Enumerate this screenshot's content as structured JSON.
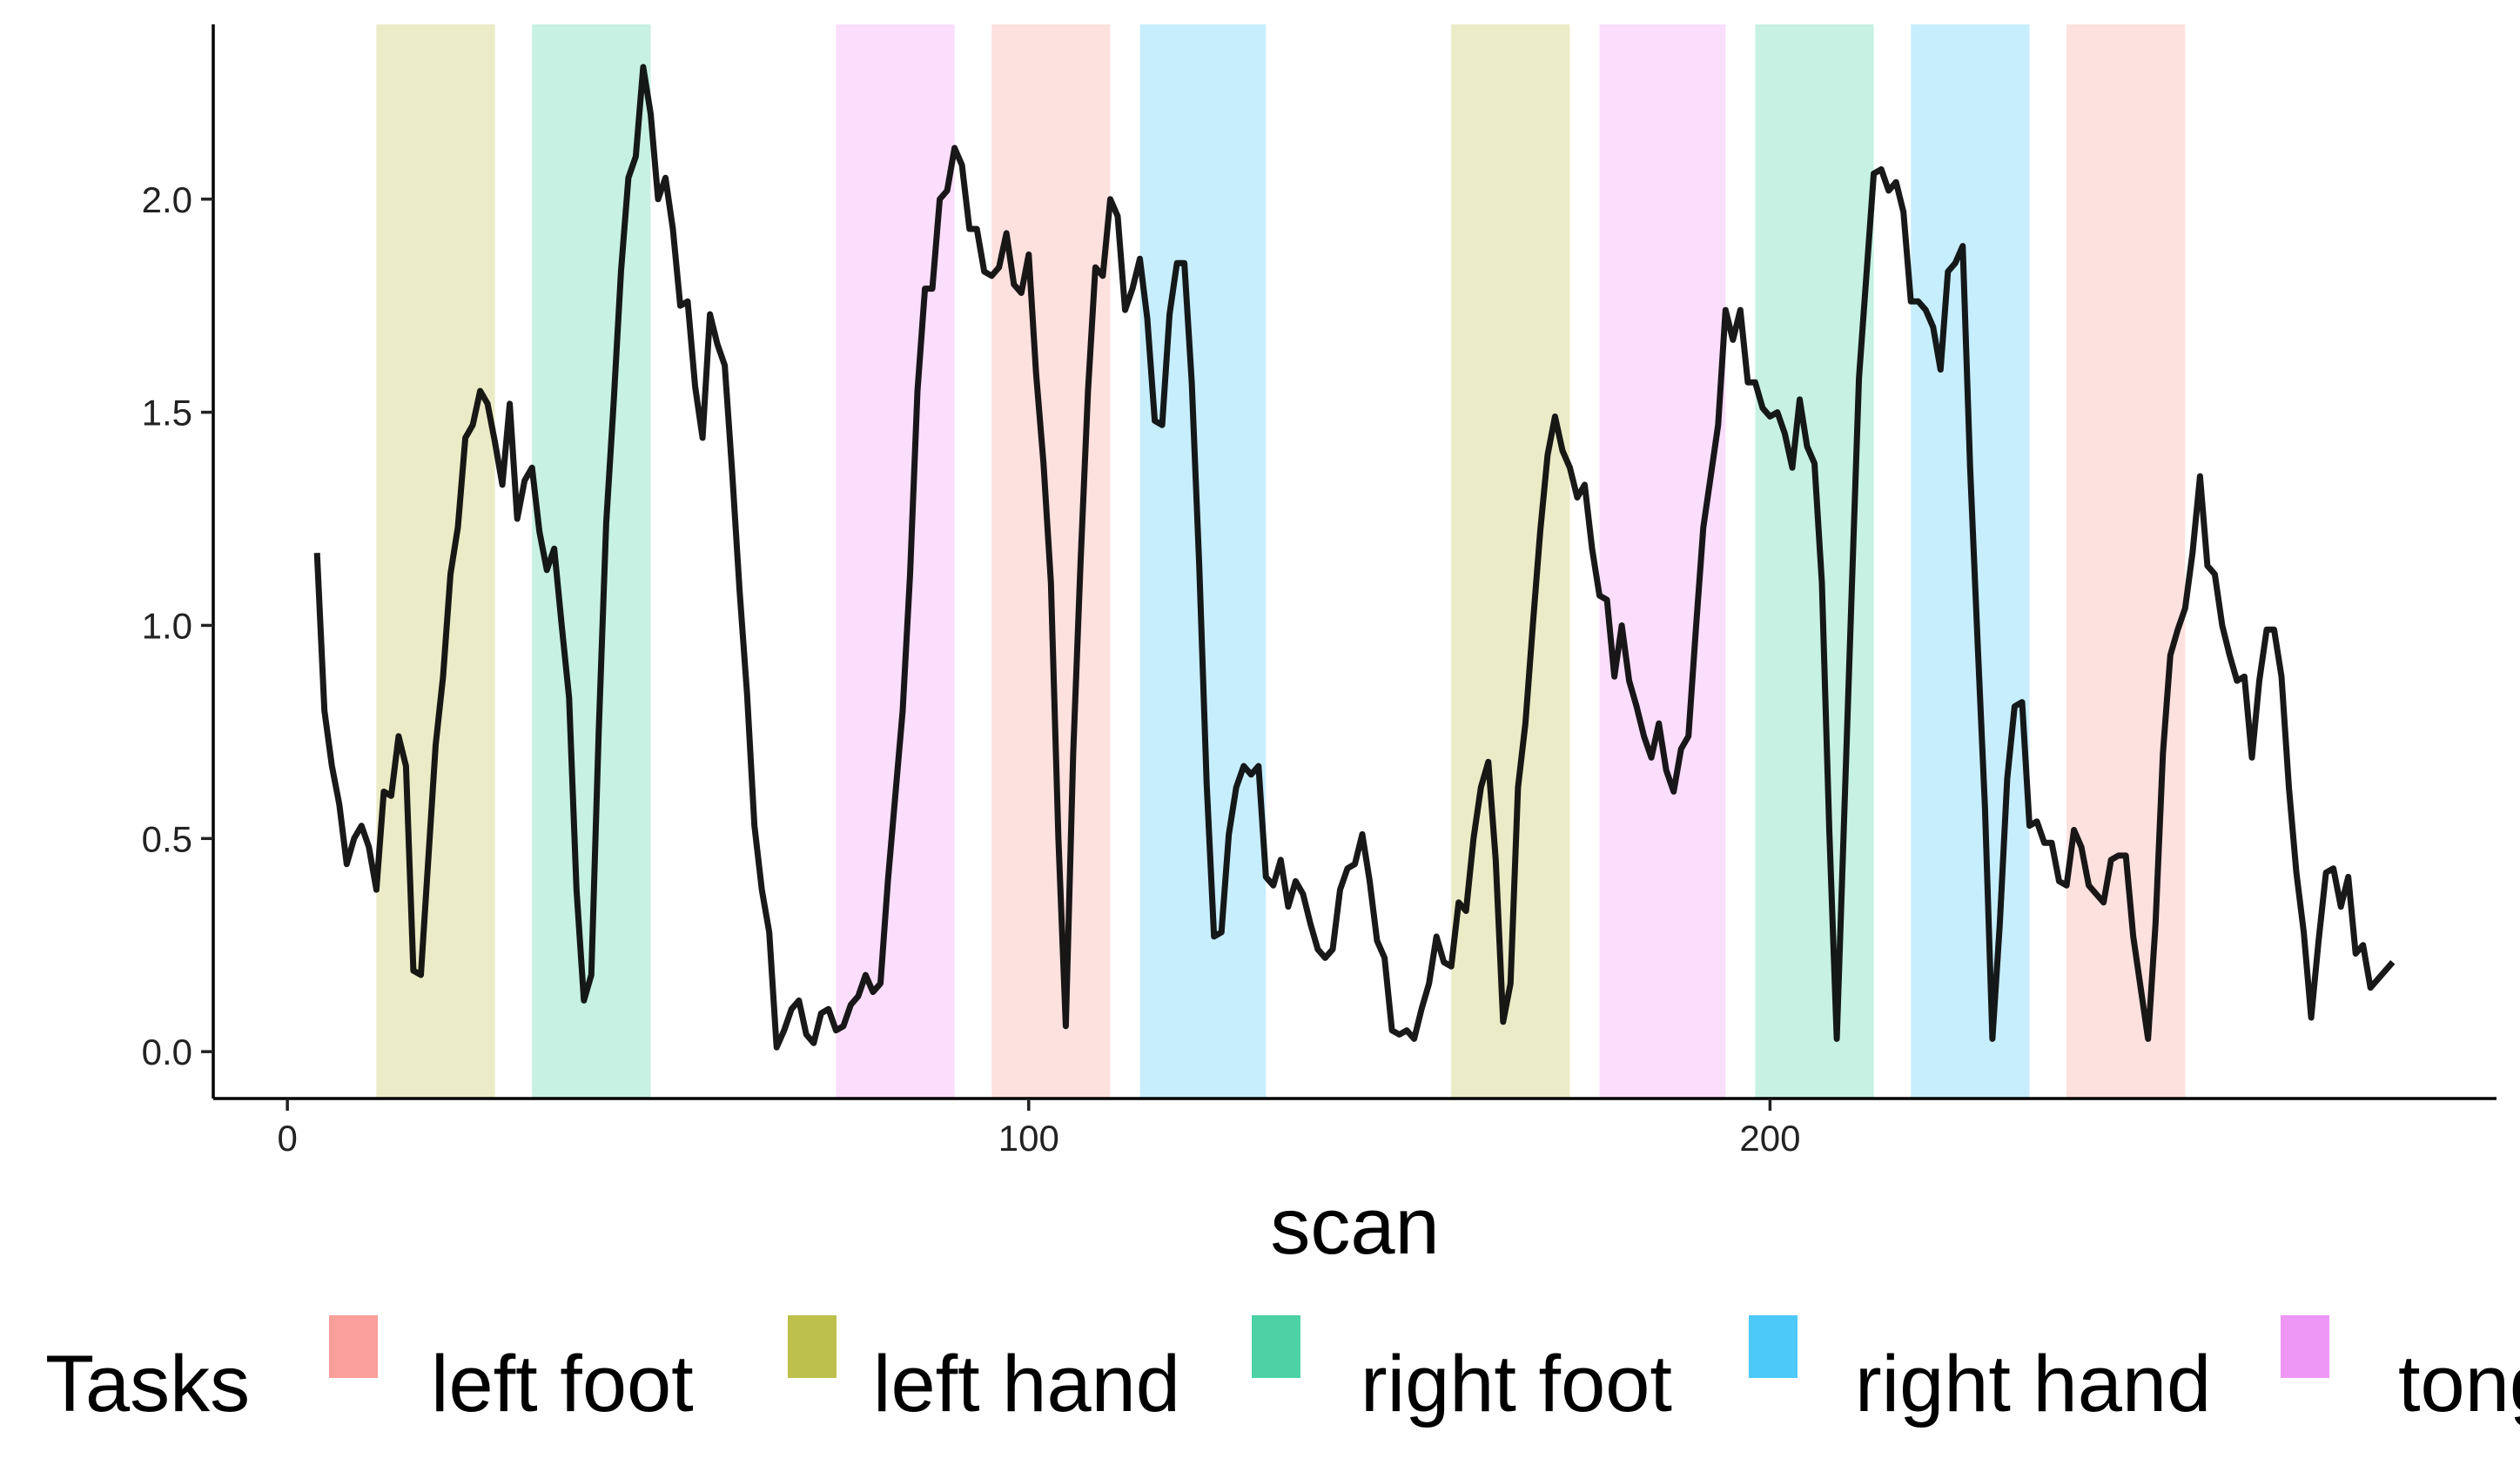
{
  "chart_data": {
    "type": "line",
    "title": "",
    "xlabel": "scan",
    "ylabel": "",
    "xlim": [
      -10,
      298
    ],
    "ylim": [
      -0.11,
      2.41
    ],
    "x_ticks": [
      0,
      100,
      200
    ],
    "x_tick_labels": [
      "0",
      "100",
      "200"
    ],
    "y_ticks": [
      0,
      0.5,
      1,
      1.5,
      2
    ],
    "y_tick_labels": [
      "0.0",
      "0.5",
      "1.0",
      "1.5",
      "2.0"
    ],
    "grid": false,
    "legend": {
      "title": "Tasks",
      "position": "bottom",
      "entries": [
        "left foot",
        "left hand",
        "right foot",
        "right hand",
        "tongue"
      ]
    },
    "task_colors": {
      "left foot": "#F8766D",
      "left hand": "#A3A500",
      "right foot": "#00BF7D",
      "right hand": "#00B0F6",
      "tongue": "#E76BF3"
    },
    "line_color": "#000000",
    "blocks": [
      {
        "task": "left hand",
        "start": 12,
        "end": 28
      },
      {
        "task": "right foot",
        "start": 33,
        "end": 49
      },
      {
        "task": "tongue",
        "start": 74,
        "end": 90
      },
      {
        "task": "left foot",
        "start": 95,
        "end": 111
      },
      {
        "task": "right hand",
        "start": 115,
        "end": 132
      },
      {
        "task": "left hand",
        "start": 157,
        "end": 173
      },
      {
        "task": "tongue",
        "start": 177,
        "end": 194
      },
      {
        "task": "right foot",
        "start": 198,
        "end": 214
      },
      {
        "task": "right hand",
        "start": 219,
        "end": 235
      },
      {
        "task": "left foot",
        "start": 240,
        "end": 256
      }
    ],
    "series": [
      {
        "values": [
          [
            4,
            1.17
          ],
          [
            5,
            0.8
          ],
          [
            6,
            0.67
          ],
          [
            7,
            0.58
          ],
          [
            8,
            0.44
          ],
          [
            9,
            0.5
          ],
          [
            10,
            0.53
          ],
          [
            11,
            0.48
          ],
          [
            12,
            0.38
          ],
          [
            13,
            0.61
          ],
          [
            14,
            0.6
          ],
          [
            15,
            0.74
          ],
          [
            16,
            0.67
          ],
          [
            17,
            0.19
          ],
          [
            18,
            0.18
          ],
          [
            19,
            0.45
          ],
          [
            20,
            0.72
          ],
          [
            21,
            0.88
          ],
          [
            22,
            1.12
          ],
          [
            23,
            1.23
          ],
          [
            24,
            1.44
          ],
          [
            25,
            1.47
          ],
          [
            26,
            1.55
          ],
          [
            27,
            1.52
          ],
          [
            28,
            1.43
          ],
          [
            29,
            1.33
          ],
          [
            30,
            1.52
          ],
          [
            31,
            1.25
          ],
          [
            32,
            1.34
          ],
          [
            33,
            1.37
          ],
          [
            34,
            1.22
          ],
          [
            35,
            1.13
          ],
          [
            36,
            1.18
          ],
          [
            37,
            1.0
          ],
          [
            38,
            0.83
          ],
          [
            39,
            0.38
          ],
          [
            40,
            0.12
          ],
          [
            41,
            0.18
          ],
          [
            42,
            0.75
          ],
          [
            43,
            1.24
          ],
          [
            44,
            1.52
          ],
          [
            45,
            1.83
          ],
          [
            46,
            2.05
          ],
          [
            47,
            2.1
          ],
          [
            48,
            2.31
          ],
          [
            49,
            2.2
          ],
          [
            50,
            2.0
          ],
          [
            51,
            2.05
          ],
          [
            52,
            1.93
          ],
          [
            53,
            1.75
          ],
          [
            54,
            1.76
          ],
          [
            55,
            1.56
          ],
          [
            56,
            1.44
          ],
          [
            57,
            1.73
          ],
          [
            58,
            1.66
          ],
          [
            59,
            1.61
          ],
          [
            60,
            1.36
          ],
          [
            61,
            1.08
          ],
          [
            62,
            0.84
          ],
          [
            63,
            0.53
          ],
          [
            64,
            0.38
          ],
          [
            65,
            0.28
          ],
          [
            66,
            0.01
          ],
          [
            67,
            0.05
          ],
          [
            68,
            0.1
          ],
          [
            69,
            0.12
          ],
          [
            70,
            0.04
          ],
          [
            71,
            0.02
          ],
          [
            72,
            0.09
          ],
          [
            73,
            0.1
          ],
          [
            74,
            0.05
          ],
          [
            75,
            0.06
          ],
          [
            76,
            0.11
          ],
          [
            77,
            0.13
          ],
          [
            78,
            0.18
          ],
          [
            79,
            0.14
          ],
          [
            80,
            0.16
          ],
          [
            81,
            0.4
          ],
          [
            82,
            0.6
          ],
          [
            83,
            0.8
          ],
          [
            84,
            1.12
          ],
          [
            85,
            1.55
          ],
          [
            86,
            1.79
          ],
          [
            87,
            1.79
          ],
          [
            88,
            2.0
          ],
          [
            89,
            2.02
          ],
          [
            90,
            2.12
          ],
          [
            91,
            2.08
          ],
          [
            92,
            1.93
          ],
          [
            93,
            1.93
          ],
          [
            94,
            1.83
          ],
          [
            95,
            1.82
          ],
          [
            96,
            1.84
          ],
          [
            97,
            1.92
          ],
          [
            98,
            1.8
          ],
          [
            99,
            1.78
          ],
          [
            100,
            1.87
          ],
          [
            101,
            1.59
          ],
          [
            102,
            1.38
          ],
          [
            103,
            1.1
          ],
          [
            104,
            0.5
          ],
          [
            105,
            0.06
          ],
          [
            106,
            0.7
          ],
          [
            107,
            1.15
          ],
          [
            108,
            1.55
          ],
          [
            109,
            1.84
          ],
          [
            110,
            1.82
          ],
          [
            111,
            2.0
          ],
          [
            112,
            1.96
          ],
          [
            113,
            1.74
          ],
          [
            114,
            1.79
          ],
          [
            115,
            1.86
          ],
          [
            116,
            1.72
          ],
          [
            117,
            1.48
          ],
          [
            118,
            1.47
          ],
          [
            119,
            1.73
          ],
          [
            120,
            1.85
          ],
          [
            121,
            1.85
          ],
          [
            122,
            1.57
          ],
          [
            123,
            1.14
          ],
          [
            124,
            0.63
          ],
          [
            125,
            0.27
          ],
          [
            126,
            0.28
          ],
          [
            127,
            0.51
          ],
          [
            128,
            0.62
          ],
          [
            129,
            0.67
          ],
          [
            130,
            0.65
          ],
          [
            131,
            0.67
          ],
          [
            132,
            0.41
          ],
          [
            133,
            0.39
          ],
          [
            134,
            0.45
          ],
          [
            135,
            0.34
          ],
          [
            136,
            0.4
          ],
          [
            137,
            0.37
          ],
          [
            138,
            0.3
          ],
          [
            139,
            0.24
          ],
          [
            140,
            0.22
          ],
          [
            141,
            0.24
          ],
          [
            142,
            0.38
          ],
          [
            143,
            0.43
          ],
          [
            144,
            0.44
          ],
          [
            145,
            0.51
          ],
          [
            146,
            0.4
          ],
          [
            147,
            0.26
          ],
          [
            148,
            0.22
          ],
          [
            149,
            0.05
          ],
          [
            150,
            0.04
          ],
          [
            151,
            0.05
          ],
          [
            152,
            0.03
          ],
          [
            153,
            0.1
          ],
          [
            154,
            0.16
          ],
          [
            155,
            0.27
          ],
          [
            156,
            0.21
          ],
          [
            157,
            0.2
          ],
          [
            158,
            0.35
          ],
          [
            159,
            0.33
          ],
          [
            160,
            0.5
          ],
          [
            161,
            0.62
          ],
          [
            162,
            0.68
          ],
          [
            163,
            0.45
          ],
          [
            164,
            0.07
          ],
          [
            165,
            0.16
          ],
          [
            166,
            0.62
          ],
          [
            167,
            0.77
          ],
          [
            168,
            1.0
          ],
          [
            169,
            1.22
          ],
          [
            170,
            1.4
          ],
          [
            171,
            1.49
          ],
          [
            172,
            1.41
          ],
          [
            173,
            1.37
          ],
          [
            174,
            1.3
          ],
          [
            175,
            1.33
          ],
          [
            176,
            1.18
          ],
          [
            177,
            1.07
          ],
          [
            178,
            1.06
          ],
          [
            179,
            0.88
          ],
          [
            180,
            1.0
          ],
          [
            181,
            0.87
          ],
          [
            182,
            0.81
          ],
          [
            183,
            0.74
          ],
          [
            184,
            0.69
          ],
          [
            185,
            0.77
          ],
          [
            186,
            0.66
          ],
          [
            187,
            0.61
          ],
          [
            188,
            0.71
          ],
          [
            189,
            0.74
          ],
          [
            190,
            0.99
          ],
          [
            191,
            1.23
          ],
          [
            192,
            1.35
          ],
          [
            193,
            1.47
          ],
          [
            194,
            1.74
          ],
          [
            195,
            1.67
          ],
          [
            196,
            1.74
          ],
          [
            197,
            1.57
          ],
          [
            198,
            1.57
          ],
          [
            199,
            1.51
          ],
          [
            200,
            1.49
          ],
          [
            201,
            1.5
          ],
          [
            202,
            1.45
          ],
          [
            203,
            1.37
          ],
          [
            204,
            1.53
          ],
          [
            205,
            1.42
          ],
          [
            206,
            1.38
          ],
          [
            207,
            1.1
          ],
          [
            208,
            0.52
          ],
          [
            209,
            0.03
          ],
          [
            210,
            0.55
          ],
          [
            211,
            1.07
          ],
          [
            212,
            1.58
          ],
          [
            213,
            1.82
          ],
          [
            214,
            2.06
          ],
          [
            215,
            2.07
          ],
          [
            216,
            2.02
          ],
          [
            217,
            2.04
          ],
          [
            218,
            1.97
          ],
          [
            219,
            1.76
          ],
          [
            220,
            1.76
          ],
          [
            221,
            1.74
          ],
          [
            222,
            1.7
          ],
          [
            223,
            1.6
          ],
          [
            224,
            1.83
          ],
          [
            225,
            1.85
          ],
          [
            226,
            1.89
          ],
          [
            227,
            1.37
          ],
          [
            228,
            0.96
          ],
          [
            229,
            0.57
          ],
          [
            230,
            0.03
          ],
          [
            231,
            0.3
          ],
          [
            232,
            0.64
          ],
          [
            233,
            0.81
          ],
          [
            234,
            0.82
          ],
          [
            235,
            0.53
          ],
          [
            236,
            0.54
          ],
          [
            237,
            0.49
          ],
          [
            238,
            0.49
          ],
          [
            239,
            0.4
          ],
          [
            240,
            0.39
          ],
          [
            241,
            0.52
          ],
          [
            242,
            0.48
          ],
          [
            243,
            0.39
          ],
          [
            244,
            0.37
          ],
          [
            245,
            0.35
          ],
          [
            246,
            0.45
          ],
          [
            247,
            0.46
          ],
          [
            248,
            0.46
          ],
          [
            249,
            0.27
          ],
          [
            250,
            0.15
          ],
          [
            251,
            0.03
          ],
          [
            252,
            0.3
          ],
          [
            253,
            0.7
          ],
          [
            254,
            0.93
          ],
          [
            255,
            0.99
          ],
          [
            256,
            1.04
          ],
          [
            257,
            1.17
          ],
          [
            258,
            1.35
          ],
          [
            259,
            1.14
          ],
          [
            260,
            1.12
          ],
          [
            261,
            1.0
          ],
          [
            262,
            0.93
          ],
          [
            263,
            0.87
          ],
          [
            264,
            0.88
          ],
          [
            265,
            0.69
          ],
          [
            266,
            0.87
          ],
          [
            267,
            0.99
          ],
          [
            268,
            0.99
          ],
          [
            269,
            0.88
          ],
          [
            270,
            0.62
          ],
          [
            271,
            0.42
          ],
          [
            272,
            0.28
          ],
          [
            273,
            0.08
          ],
          [
            274,
            0.26
          ],
          [
            275,
            0.42
          ],
          [
            276,
            0.43
          ],
          [
            277,
            0.34
          ],
          [
            278,
            0.41
          ],
          [
            279,
            0.23
          ],
          [
            280,
            0.25
          ],
          [
            281,
            0.15
          ],
          [
            282,
            0.17
          ],
          [
            283,
            0.19
          ],
          [
            284,
            0.21
          ]
        ]
      }
    ]
  }
}
